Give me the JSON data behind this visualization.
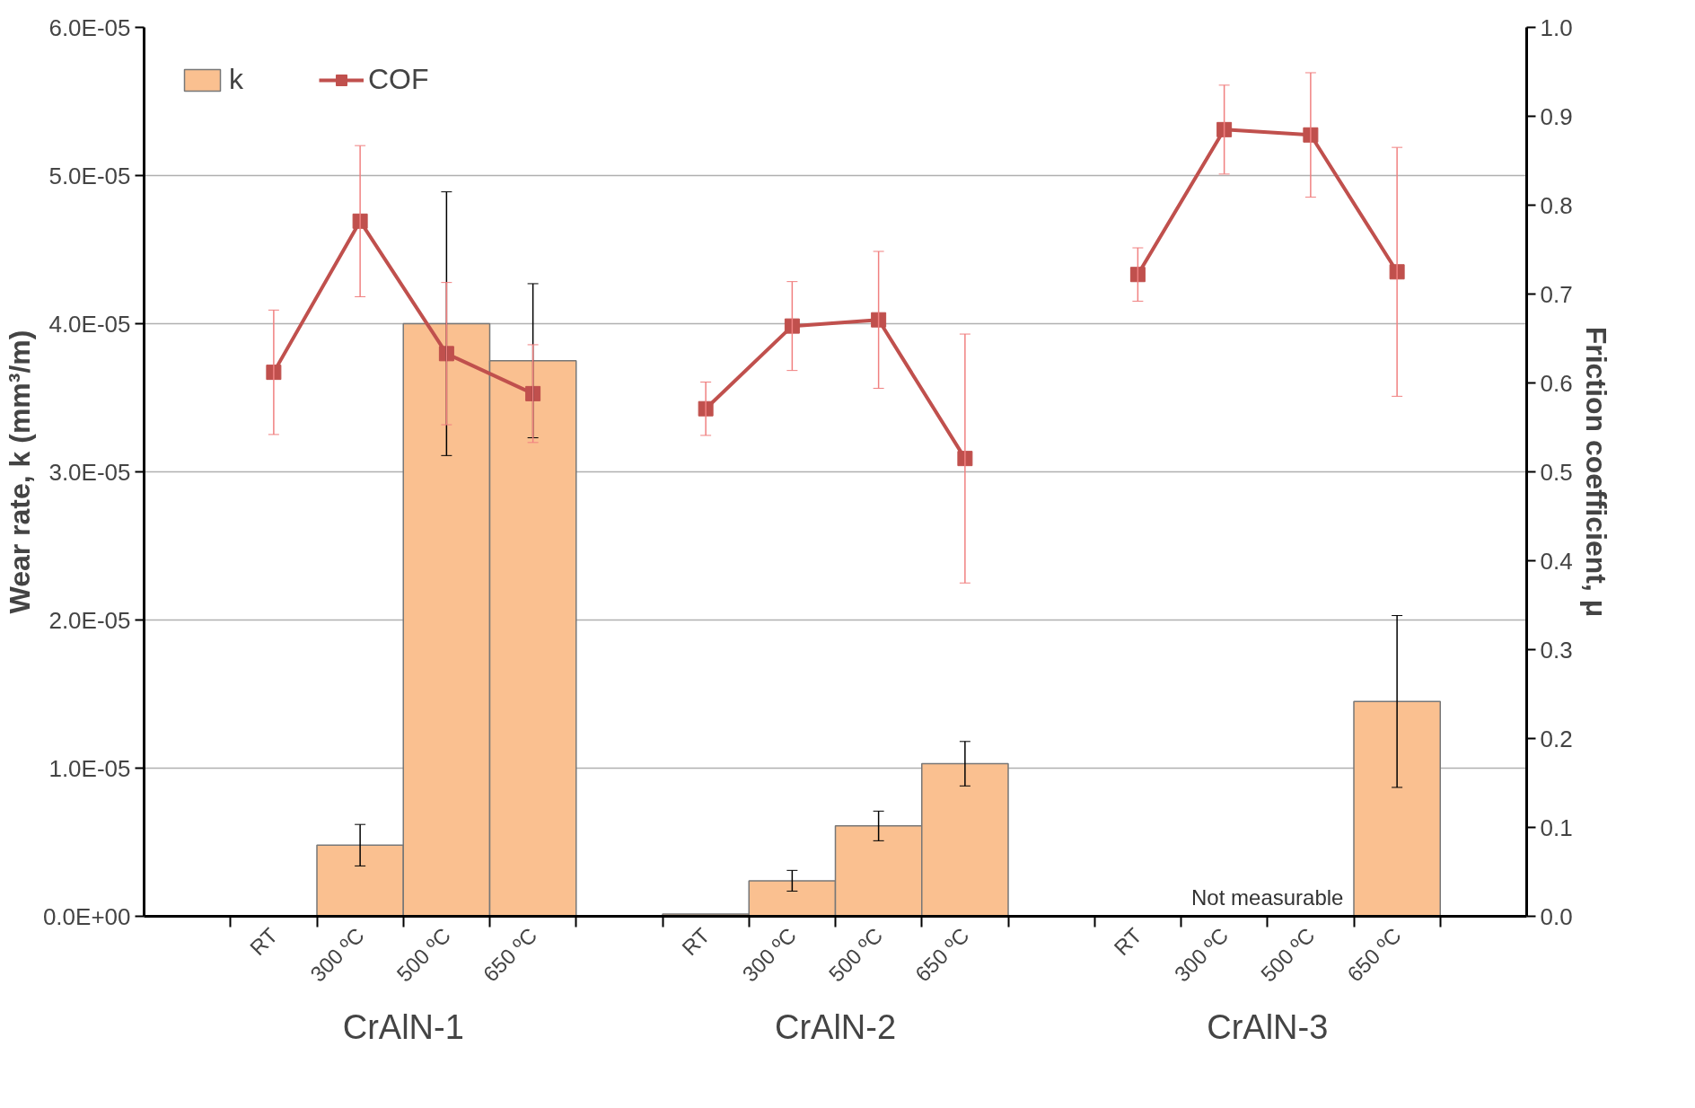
{
  "chart_data": {
    "type": "bar",
    "ylabel": "Wear rate, k (mm³/m)",
    "y2label": "Friction coefficient, μ",
    "categories": [
      null,
      "RT",
      "300 ºC",
      "500 ºC",
      "650 ºC",
      null,
      "RT",
      "300 ºC",
      "500 ºC",
      "650 ºC",
      null,
      "RT",
      "300 ºC",
      "500 ºC",
      "650 ºC",
      null
    ],
    "series": [
      {
        "name": "k",
        "color": "#fac090",
        "values": [
          null,
          null,
          4.8e-06,
          4e-05,
          3.75e-05,
          null,
          1.5e-07,
          2.4e-06,
          6.1e-06,
          1.03e-05,
          null,
          null,
          null,
          null,
          1.45e-05,
          null
        ],
        "errors": [
          null,
          null,
          1.4e-06,
          8.9e-06,
          5.2e-06,
          null,
          null,
          7e-07,
          1e-06,
          1.5e-06,
          null,
          null,
          null,
          null,
          5.8e-06,
          null
        ]
      },
      {
        "name": "COF",
        "type": "line",
        "axis": "y2",
        "color": "#c0504d",
        "marker": "square",
        "values": [
          null,
          0.612,
          0.782,
          0.633,
          0.588,
          null,
          0.571,
          0.664,
          0.671,
          0.515,
          null,
          0.722,
          0.885,
          0.879,
          0.725,
          null
        ],
        "errors": [
          null,
          0.07,
          0.085,
          0.08,
          0.055,
          null,
          0.03,
          0.05,
          0.077,
          0.14,
          null,
          0.03,
          0.05,
          0.07,
          0.14,
          null
        ]
      }
    ],
    "ylim": [
      0,
      6e-05
    ],
    "yticks": [
      {
        "value": 0,
        "label": "0.0E+00"
      },
      {
        "value": 1e-05,
        "label": "1.0E-05"
      },
      {
        "value": 2e-05,
        "label": "2.0E-05"
      },
      {
        "value": 3e-05,
        "label": "3.0E-05"
      },
      {
        "value": 4e-05,
        "label": "4.0E-05"
      },
      {
        "value": 5e-05,
        "label": "5.0E-05"
      },
      {
        "value": 6e-05,
        "label": "6.0E-05"
      }
    ],
    "y2lim": [
      0,
      1
    ],
    "y2ticks": [
      {
        "value": 0,
        "label": "0.0"
      },
      {
        "value": 0.1,
        "label": "0.1"
      },
      {
        "value": 0.2,
        "label": "0.2"
      },
      {
        "value": 0.3,
        "label": "0.3"
      },
      {
        "value": 0.4,
        "label": "0.4"
      },
      {
        "value": 0.5,
        "label": "0.5"
      },
      {
        "value": 0.6,
        "label": "0.6"
      },
      {
        "value": 0.7,
        "label": "0.7"
      },
      {
        "value": 0.8,
        "label": "0.8"
      },
      {
        "value": 0.9,
        "label": "0.9"
      },
      {
        "value": 1,
        "label": "1.0"
      }
    ],
    "grid": "y",
    "legend": "top left",
    "annotations": [
      "CrAlN-1",
      "CrAlN-2",
      "CrAlN-3",
      "Not measurable"
    ]
  }
}
